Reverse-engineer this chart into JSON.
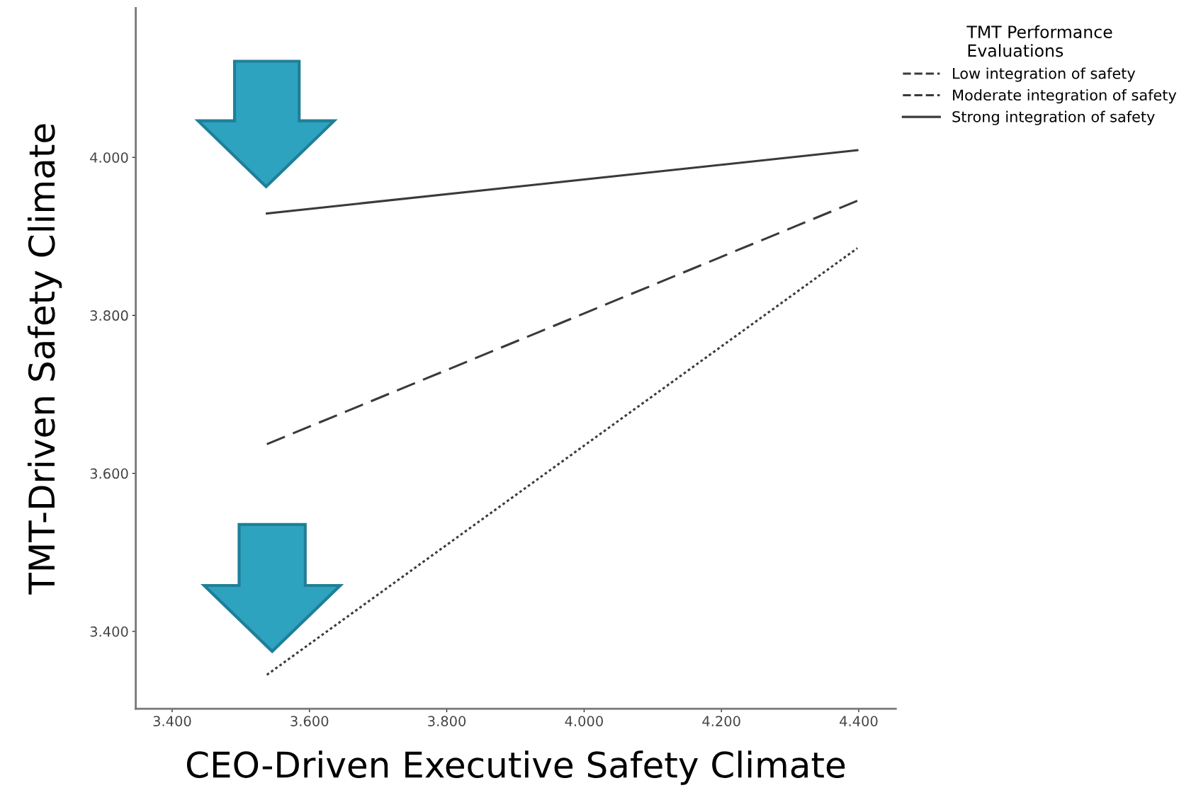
{
  "chart_data": {
    "type": "line",
    "xlabel": "CEO-Driven Executive Safety Climate",
    "ylabel": "TMT-Driven Safety Climate",
    "legend_title": "TMT Performance\nEvaluations",
    "legend": "top right",
    "grid": false,
    "marker": "none",
    "xlim": [
      3.347,
      4.454
    ],
    "ylim": [
      3.302,
      4.189
    ],
    "xticks": [
      {
        "value": 3.4,
        "label": "3.400"
      },
      {
        "value": 3.6,
        "label": "3.600"
      },
      {
        "value": 3.8,
        "label": "3.800"
      },
      {
        "value": 4.0,
        "label": "4.000"
      },
      {
        "value": 4.2,
        "label": "4.200"
      },
      {
        "value": 4.4,
        "label": "4.400"
      }
    ],
    "yticks": [
      {
        "value": 3.4,
        "label": "3.400"
      },
      {
        "value": 3.6,
        "label": "3.600"
      },
      {
        "value": 3.8,
        "label": "3.800"
      },
      {
        "value": 4.0,
        "label": "4.000"
      }
    ],
    "x": [
      3.538,
      4.398
    ],
    "series": [
      {
        "name": "Low integration of safety",
        "color": "#3a3a3a",
        "line_style": "dotted",
        "values": [
          3.345,
          3.885
        ]
      },
      {
        "name": "Moderate integration of safety",
        "color": "#3a3a3a",
        "line_style": "dashed",
        "values": [
          3.637,
          3.945
        ]
      },
      {
        "name": "Strong integration of safety",
        "color": "#3a3a3a",
        "line_style": "solid",
        "values": [
          3.929,
          4.009
        ]
      }
    ]
  }
}
